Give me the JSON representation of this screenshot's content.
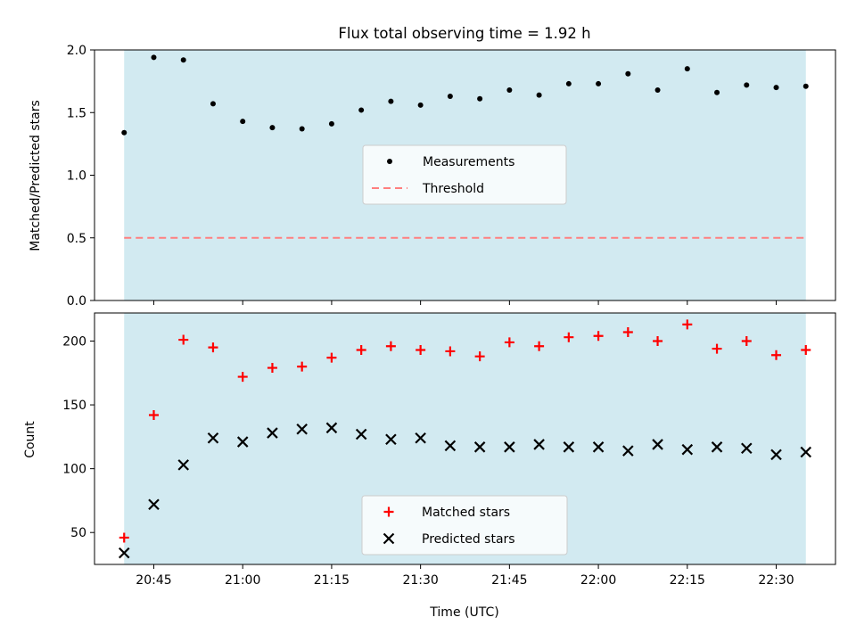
{
  "chart_data": [
    {
      "type": "scatter",
      "title": "Flux total observing time = 1.92 h",
      "ylabel": "Matched/Predicted stars",
      "xlabel": "",
      "xlim": [
        "20:35",
        "22:40"
      ],
      "ylim": [
        0,
        2.0
      ],
      "yticks": [
        0.0,
        0.5,
        1.0,
        1.5,
        2.0
      ],
      "ytick_labels": [
        "0.0",
        "0.5",
        "1.0",
        "1.5",
        "2.0"
      ],
      "shaded_span": [
        "20:40",
        "22:35"
      ],
      "shade_color": "#add8e6",
      "x": [
        "20:40",
        "20:45",
        "20:50",
        "20:55",
        "21:00",
        "21:05",
        "21:10",
        "21:15",
        "21:20",
        "21:25",
        "21:30",
        "21:35",
        "21:40",
        "21:45",
        "21:50",
        "21:55",
        "22:00",
        "22:05",
        "22:10",
        "22:15",
        "22:20",
        "22:25",
        "22:30",
        "22:35"
      ],
      "series": [
        {
          "name": "Measurements",
          "color": "#000000",
          "marker": "dot",
          "values": [
            1.34,
            1.94,
            1.92,
            1.57,
            1.43,
            1.38,
            1.37,
            1.41,
            1.52,
            1.59,
            1.56,
            1.63,
            1.61,
            1.68,
            1.64,
            1.73,
            1.73,
            1.81,
            1.68,
            1.85,
            1.66,
            1.72,
            1.7,
            1.71
          ]
        },
        {
          "name": "Threshold",
          "color": "#ff7f7f",
          "style": "dashed",
          "values": [
            0.5
          ]
        }
      ],
      "legend": "center",
      "grid": false
    },
    {
      "type": "scatter",
      "title": "",
      "ylabel": "Count",
      "xlabel": "Time (UTC)",
      "xlim": [
        "20:35",
        "22:40"
      ],
      "ylim": [
        25,
        222
      ],
      "yticks": [
        50,
        100,
        150,
        200
      ],
      "ytick_labels": [
        "50",
        "100",
        "150",
        "200"
      ],
      "xticks": [
        "20:45",
        "21:00",
        "21:15",
        "21:30",
        "21:45",
        "22:00",
        "22:15",
        "22:30"
      ],
      "shaded_span": [
        "20:40",
        "22:35"
      ],
      "shade_color": "#add8e6",
      "x": [
        "20:40",
        "20:45",
        "20:50",
        "20:55",
        "21:00",
        "21:05",
        "21:10",
        "21:15",
        "21:20",
        "21:25",
        "21:30",
        "21:35",
        "21:40",
        "21:45",
        "21:50",
        "21:55",
        "22:00",
        "22:05",
        "22:10",
        "22:15",
        "22:20",
        "22:25",
        "22:30",
        "22:35"
      ],
      "series": [
        {
          "name": "Matched stars",
          "color": "#ff0000",
          "marker": "plus",
          "values": [
            46,
            142,
            201,
            195,
            172,
            179,
            180,
            187,
            193,
            196,
            193,
            192,
            188,
            199,
            196,
            203,
            204,
            207,
            200,
            213,
            194,
            200,
            189,
            193
          ]
        },
        {
          "name": "Predicted stars",
          "color": "#000000",
          "marker": "x",
          "values": [
            34,
            72,
            103,
            124,
            121,
            128,
            131,
            132,
            127,
            123,
            124,
            118,
            117,
            117,
            119,
            117,
            117,
            114,
            119,
            115,
            117,
            116,
            111,
            113
          ]
        }
      ],
      "legend": "lower center",
      "grid": false
    }
  ]
}
